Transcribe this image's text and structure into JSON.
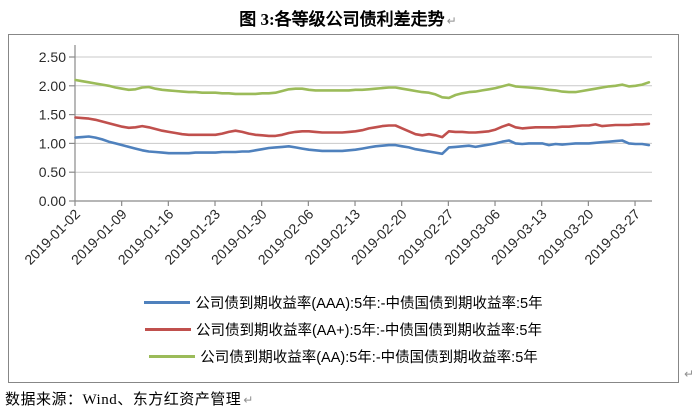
{
  "page": {
    "title": "图 3:各等级公司债利差走势",
    "paragraph_mark": "↵",
    "source_note": "数据来源：Wind、东方红资产管理"
  },
  "colors": {
    "axis": "#8a8a8a",
    "grid": "#c9c9c9",
    "tick_label": "#2b2b2b",
    "box_border": "#878787",
    "series_blue": "#4F81BD",
    "series_red": "#C0504D",
    "series_green": "#9BBB59"
  },
  "chart_data": {
    "type": "line",
    "title": "图 3:各等级公司债利差走势",
    "xlabel": "",
    "ylabel": "",
    "ylim": [
      0,
      2.5
    ],
    "y_tick_labels": [
      "0.00",
      "0.50",
      "1.00",
      "1.50",
      "2.00",
      "2.50"
    ],
    "x_tick_labels": [
      "2019-01-02",
      "2019-01-09",
      "2019-01-16",
      "2019-01-23",
      "2019-01-30",
      "2019-02-06",
      "2019-02-13",
      "2019-02-20",
      "2019-02-27",
      "2019-03-06",
      "2019-03-13",
      "2019-03-20",
      "2019-03-27"
    ],
    "x_tick_interval_days": 7,
    "points_per_day": 1,
    "grid": true,
    "legend_position": "bottom",
    "series": [
      {
        "name": "公司债到期收益率(AAA):5年:-中债国债到期收益率:5年",
        "color": "#4F81BD",
        "values": [
          1.1,
          1.11,
          1.12,
          1.1,
          1.07,
          1.03,
          1.0,
          0.97,
          0.94,
          0.91,
          0.88,
          0.86,
          0.85,
          0.84,
          0.83,
          0.83,
          0.83,
          0.83,
          0.84,
          0.84,
          0.84,
          0.84,
          0.85,
          0.85,
          0.85,
          0.86,
          0.86,
          0.88,
          0.9,
          0.92,
          0.93,
          0.94,
          0.95,
          0.93,
          0.91,
          0.89,
          0.88,
          0.87,
          0.87,
          0.87,
          0.87,
          0.88,
          0.89,
          0.91,
          0.93,
          0.95,
          0.96,
          0.97,
          0.97,
          0.95,
          0.93,
          0.9,
          0.88,
          0.86,
          0.84,
          0.82,
          0.93,
          0.94,
          0.95,
          0.96,
          0.94,
          0.96,
          0.98,
          1.0,
          1.03,
          1.05,
          1.0,
          0.99,
          1.0,
          1.0,
          1.0,
          0.97,
          0.99,
          0.98,
          0.99,
          1.0,
          1.0,
          1.0,
          1.01,
          1.02,
          1.03,
          1.04,
          1.05,
          1.0,
          0.99,
          0.99,
          0.97
        ]
      },
      {
        "name": "公司债到期收益率(AA+):5年:-中债国债到期收益率:5年",
        "color": "#C0504D",
        "values": [
          1.45,
          1.44,
          1.43,
          1.41,
          1.38,
          1.35,
          1.32,
          1.29,
          1.27,
          1.28,
          1.3,
          1.28,
          1.25,
          1.22,
          1.2,
          1.18,
          1.16,
          1.15,
          1.15,
          1.15,
          1.15,
          1.15,
          1.17,
          1.2,
          1.22,
          1.2,
          1.17,
          1.15,
          1.14,
          1.13,
          1.13,
          1.15,
          1.18,
          1.2,
          1.21,
          1.21,
          1.2,
          1.19,
          1.19,
          1.19,
          1.19,
          1.2,
          1.21,
          1.23,
          1.26,
          1.28,
          1.3,
          1.31,
          1.31,
          1.26,
          1.21,
          1.16,
          1.14,
          1.16,
          1.14,
          1.11,
          1.21,
          1.2,
          1.2,
          1.19,
          1.19,
          1.2,
          1.21,
          1.24,
          1.29,
          1.33,
          1.28,
          1.26,
          1.27,
          1.28,
          1.28,
          1.28,
          1.28,
          1.29,
          1.29,
          1.3,
          1.31,
          1.31,
          1.33,
          1.3,
          1.31,
          1.32,
          1.32,
          1.32,
          1.33,
          1.33,
          1.34
        ]
      },
      {
        "name": "公司债到期收益率(AA):5年:-中债国债到期收益率:5年",
        "color": "#9BBB59",
        "values": [
          2.1,
          2.08,
          2.06,
          2.04,
          2.02,
          2.0,
          1.97,
          1.95,
          1.93,
          1.94,
          1.97,
          1.98,
          1.95,
          1.93,
          1.92,
          1.91,
          1.9,
          1.89,
          1.89,
          1.88,
          1.88,
          1.88,
          1.87,
          1.87,
          1.86,
          1.86,
          1.86,
          1.86,
          1.87,
          1.87,
          1.88,
          1.91,
          1.94,
          1.95,
          1.95,
          1.93,
          1.92,
          1.92,
          1.92,
          1.92,
          1.92,
          1.92,
          1.93,
          1.93,
          1.94,
          1.95,
          1.96,
          1.97,
          1.97,
          1.95,
          1.93,
          1.91,
          1.89,
          1.88,
          1.85,
          1.8,
          1.79,
          1.84,
          1.87,
          1.89,
          1.9,
          1.92,
          1.94,
          1.96,
          1.99,
          2.02,
          1.99,
          1.98,
          1.97,
          1.96,
          1.95,
          1.93,
          1.92,
          1.9,
          1.89,
          1.89,
          1.91,
          1.93,
          1.95,
          1.97,
          1.99,
          2.0,
          2.02,
          1.99,
          2.0,
          2.02,
          2.06
        ]
      }
    ]
  }
}
